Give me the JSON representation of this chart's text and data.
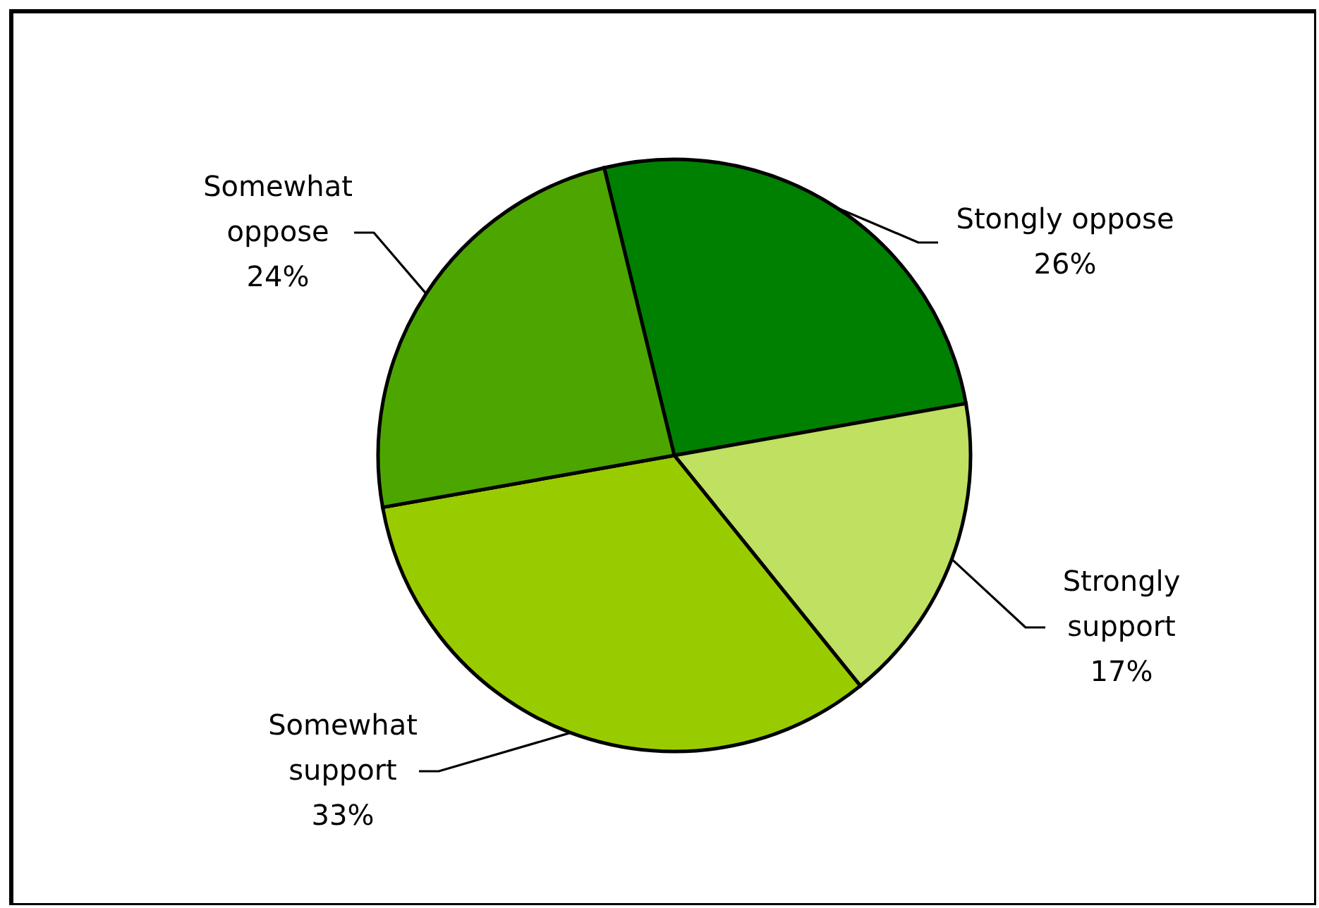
{
  "chart_data": {
    "type": "pie",
    "categories": [
      "Stongly oppose",
      "Strongly support",
      "Somewhat support",
      "Somewhat oppose"
    ],
    "values": [
      26,
      17,
      33,
      24
    ],
    "colors": [
      "#008000",
      "#bfe060",
      "#99cc00",
      "#4da600"
    ],
    "value_labels": [
      "26%",
      "17%",
      "33%",
      "24%"
    ]
  }
}
